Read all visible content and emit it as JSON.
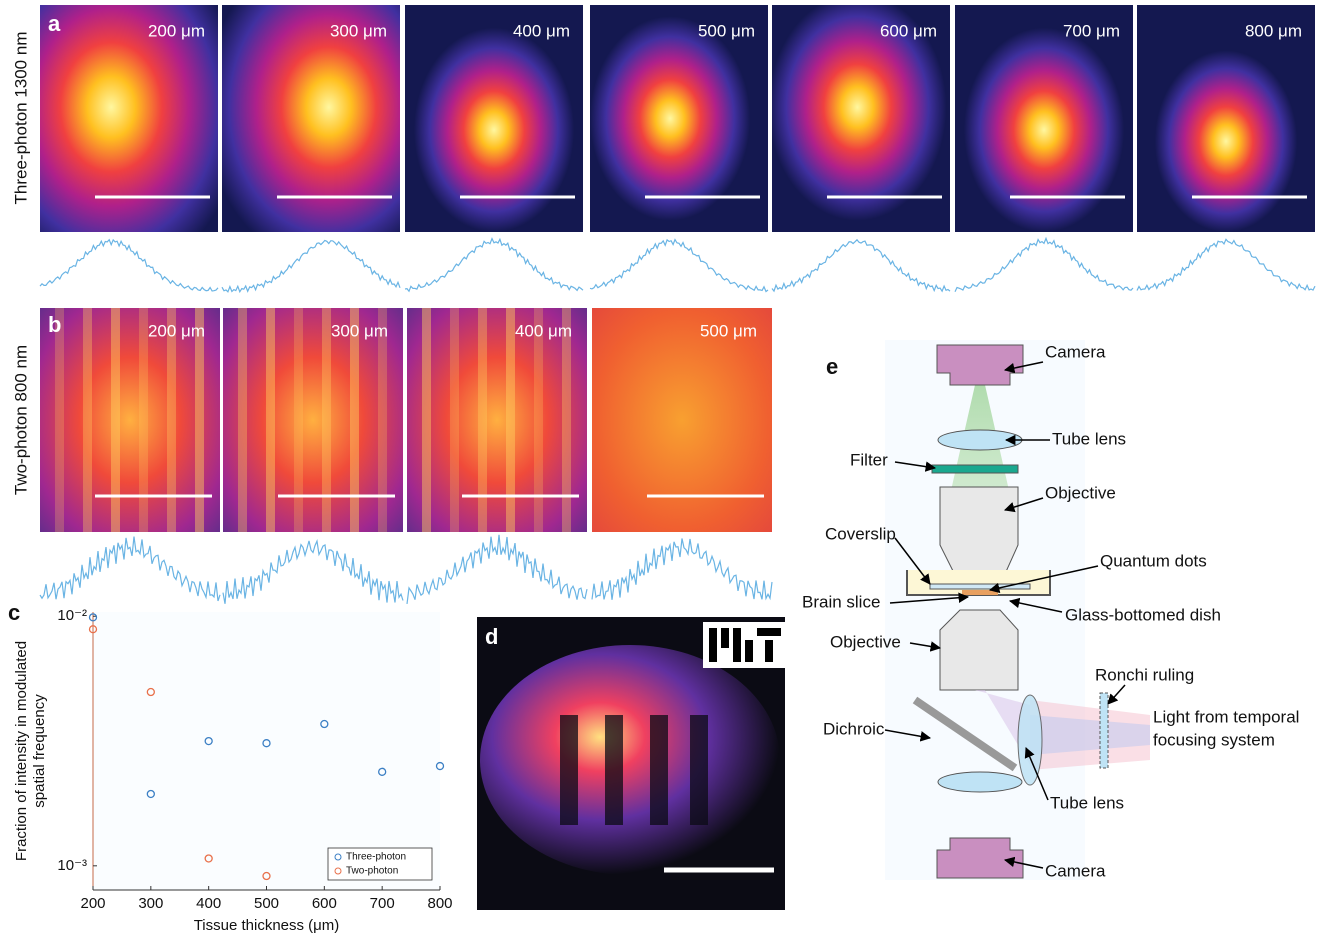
{
  "panel_a": {
    "label": "a",
    "row_label": "Three-photon 1300 nm",
    "depths": [
      "200 μm",
      "300 μm",
      "400 μm",
      "500 μm",
      "600 μm",
      "700 μm",
      "800 μm"
    ]
  },
  "panel_b": {
    "label": "b",
    "row_label": "Two-photon 800 nm",
    "depths": [
      "200 μm",
      "300 μm",
      "400 μm",
      "500 μm"
    ]
  },
  "chart_data": {
    "type": "scatter",
    "panel_label": "c",
    "x_label": "Tissue thickness (μm)",
    "y_label": [
      "Fraction of intensity in modulated",
      "spatial frequency"
    ],
    "y_log": true,
    "legend": "lower right",
    "xlim": [
      200,
      800
    ],
    "ylim": [
      0.0008,
      0.0104
    ],
    "xticks": [
      200,
      300,
      400,
      500,
      600,
      700,
      800
    ],
    "yticks": [
      {
        "value": 0.001,
        "label": "10⁻³"
      },
      {
        "value": 0.01,
        "label": "10⁻²"
      }
    ],
    "series": [
      {
        "name": "Three-photon",
        "color": "#3b7fc4",
        "x": [
          200,
          300,
          400,
          500,
          600,
          700,
          800
        ],
        "values": [
          0.0099,
          0.00194,
          0.00316,
          0.0031,
          0.0037,
          0.00238,
          0.00251
        ]
      },
      {
        "name": "Two-photon",
        "color": "#e8704a",
        "x": [
          200,
          300,
          400,
          500
        ],
        "values": [
          0.00887,
          0.00497,
          0.00107,
          0.00091
        ]
      }
    ]
  },
  "panel_d": {
    "label": "d"
  },
  "panel_e": {
    "label": "e",
    "labels": [
      "Camera",
      "Tube lens",
      "Filter",
      "Objective",
      "Coverslip",
      "Quantum dots",
      "Brain slice",
      "Glass-bottomed dish",
      "Objective",
      "Ronchi ruling",
      "Dichroic",
      "Light from temporal",
      "focusing system",
      "Tube lens",
      "Camera"
    ]
  }
}
